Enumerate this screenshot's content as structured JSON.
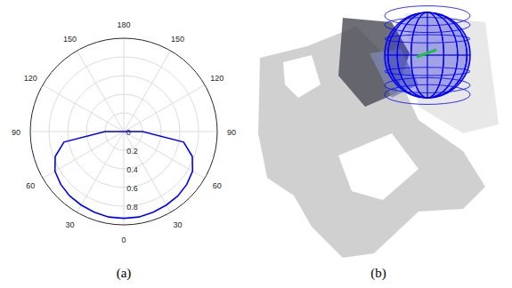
{
  "chart_data": {
    "type": "polar",
    "x": [
      -90,
      -80,
      -70,
      -60,
      -50,
      -40,
      -30,
      -20,
      -10,
      0,
      10,
      20,
      30,
      40,
      50,
      60,
      70,
      80,
      90
    ],
    "values": [
      0.2,
      0.65,
      0.78,
      0.85,
      0.88,
      0.9,
      0.91,
      0.92,
      0.93,
      0.93,
      0.93,
      0.92,
      0.91,
      0.9,
      0.88,
      0.85,
      0.78,
      0.65,
      0.2
    ],
    "color": "#0000ff",
    "line_style": "solid",
    "grid": true,
    "rlim": [
      0,
      1
    ],
    "rticks": [
      0,
      0.2,
      0.4,
      0.6,
      0.8
    ],
    "thetaticks": [
      0,
      30,
      60,
      90,
      120,
      150,
      180,
      {
        "value": -30,
        "label": "30"
      },
      {
        "value": -60,
        "label": "60"
      },
      {
        "value": -90,
        "label": "90"
      },
      {
        "value": -120,
        "label": "120"
      },
      {
        "value": -150,
        "label": "150"
      }
    ]
  },
  "panels": {
    "a": "(a)",
    "b": "(b)"
  }
}
